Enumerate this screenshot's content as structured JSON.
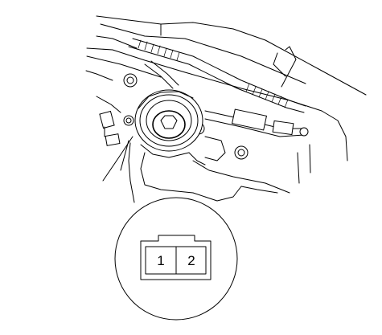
{
  "connector": {
    "pins": [
      {
        "number": "1"
      },
      {
        "number": "2"
      }
    ]
  },
  "colors": {
    "line": "#000000",
    "background": "#ffffff"
  }
}
